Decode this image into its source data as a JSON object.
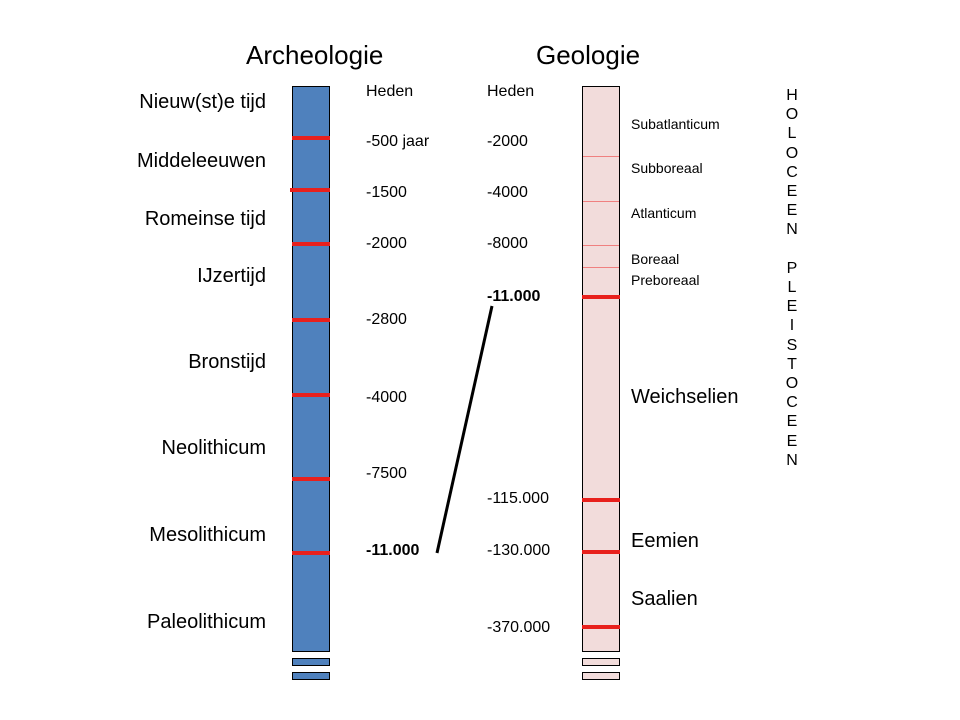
{
  "titles": {
    "archeologie": "Archeologie",
    "geologie": "Geologie"
  },
  "arch_periods": [
    "Nieuw(st)e tijd",
    "Middeleeuwen",
    "Romeinse tijd",
    "IJzertijd",
    "Bronstijd",
    "Neolithicum",
    "Mesolithicum",
    "Paleolithicum"
  ],
  "arch_dates": [
    "Heden",
    "-500 jaar",
    "-1500",
    "-2000",
    "-2800",
    "-4000",
    "-7500",
    "-11.000"
  ],
  "geo_dates": [
    "Heden",
    "-2000",
    "-4000",
    "-8000",
    "-11.000",
    "-115.000",
    "-130.000",
    "-370.000"
  ],
  "geo_sub": [
    "Subatlanticum",
    "Subboreaal",
    "Atlanticum",
    "Boreaal",
    "Preboreaal"
  ],
  "geo_main": [
    "Weichselien",
    "Eemien",
    "Saalien"
  ],
  "holoceen": "HOLOCEEN",
  "pleistoceen": "PLEISTOCEEN",
  "colors": {
    "arch_bar": "#4f81bd",
    "geo_bar": "#f2dcdb",
    "tick": "#e8201c"
  }
}
